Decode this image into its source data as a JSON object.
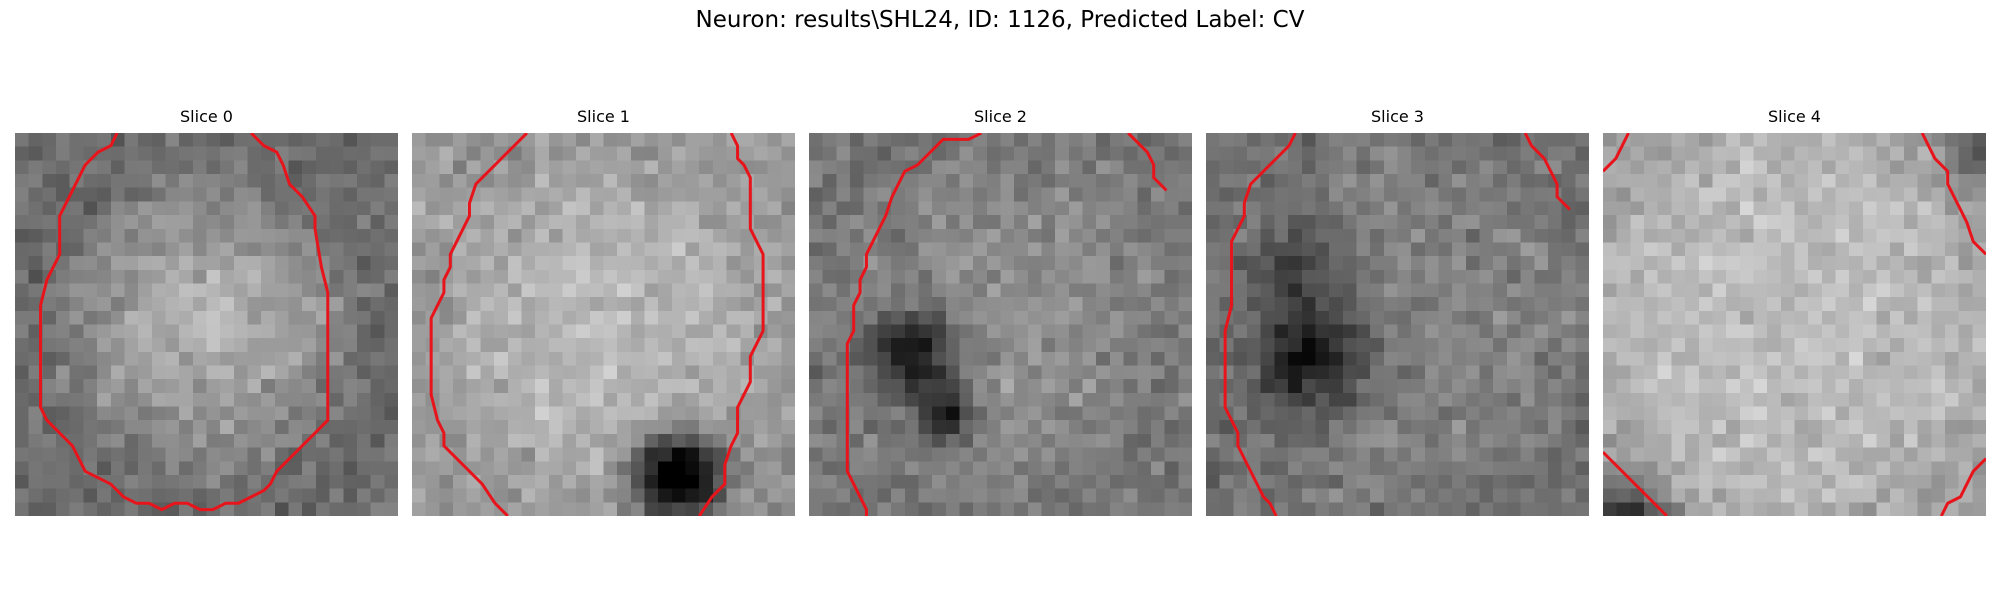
{
  "figure": {
    "title": "Neuron: results\\SHL24, ID: 1126, Predicted Label: CV",
    "colormap": "gray",
    "contour_color": "#e8141b",
    "grid_size": 28
  },
  "slices": [
    {
      "title": "Slice 0",
      "mean": 0.55,
      "center_brightness": 0.2,
      "radius": 0.62,
      "edge_darkness": -0.12,
      "dark_spots": [],
      "contours": [
        [
          [
            7.5,
            -0.5
          ],
          [
            7,
            0.5
          ],
          [
            6,
            1
          ],
          [
            5,
            2
          ],
          [
            4.5,
            3
          ],
          [
            4,
            4
          ],
          [
            3.5,
            5
          ],
          [
            3,
            6
          ],
          [
            3,
            8
          ],
          [
            3,
            9
          ],
          [
            2.5,
            10
          ],
          [
            2,
            11
          ],
          [
            1.5,
            13
          ],
          [
            1.5,
            16
          ],
          [
            1.5,
            19
          ],
          [
            1.5,
            21
          ],
          [
            2,
            22
          ],
          [
            3,
            23
          ],
          [
            4,
            24
          ],
          [
            4.5,
            25
          ],
          [
            5,
            26
          ],
          [
            6,
            26.5
          ],
          [
            7,
            27
          ],
          [
            8,
            28
          ],
          [
            9,
            28.5
          ],
          [
            10,
            28.5
          ],
          [
            11,
            29
          ],
          [
            12,
            28.5
          ],
          [
            13,
            28.5
          ],
          [
            14,
            29
          ],
          [
            15,
            29
          ],
          [
            16,
            28.5
          ],
          [
            17,
            28.5
          ],
          [
            18,
            28
          ],
          [
            19,
            27.5
          ],
          [
            19.5,
            27
          ],
          [
            20,
            26
          ],
          [
            21,
            25
          ],
          [
            22,
            24
          ],
          [
            23,
            23
          ],
          [
            24,
            22
          ],
          [
            24,
            20
          ],
          [
            24,
            17
          ],
          [
            24,
            15
          ],
          [
            24,
            12
          ],
          [
            23.5,
            10
          ],
          [
            23,
            7
          ],
          [
            23,
            6
          ],
          [
            22,
            4.5
          ],
          [
            21,
            3.5
          ],
          [
            20.5,
            2
          ],
          [
            20,
            1
          ],
          [
            19,
            0.5
          ],
          [
            18.5,
            0
          ],
          [
            18,
            -0.5
          ]
        ]
      ]
    },
    {
      "title": "Slice 1",
      "mean": 0.68,
      "center_brightness": 0.08,
      "radius": 0.7,
      "edge_darkness": -0.08,
      "dark_spots": [
        [
          19,
          24.5,
          2.2,
          0.75
        ]
      ],
      "contours": [
        [
          [
            8.5,
            -0.5
          ],
          [
            7.5,
            0.5
          ],
          [
            6,
            2
          ],
          [
            4.5,
            3.5
          ],
          [
            4,
            5
          ],
          [
            4,
            6
          ],
          [
            3.5,
            7
          ],
          [
            3,
            8
          ],
          [
            2.5,
            9
          ],
          [
            2.5,
            10
          ],
          [
            2,
            11
          ],
          [
            2,
            12
          ],
          [
            1.5,
            13
          ],
          [
            1,
            14
          ],
          [
            1,
            16
          ],
          [
            1,
            18
          ],
          [
            1,
            20
          ],
          [
            1.5,
            22
          ],
          [
            2,
            23
          ],
          [
            2,
            24
          ],
          [
            3,
            25
          ],
          [
            4,
            26
          ],
          [
            5,
            27
          ],
          [
            6,
            28.5
          ],
          [
            7,
            29.5
          ]
        ],
        [
          [
            24.5,
            -0.5
          ],
          [
            25,
            0.5
          ],
          [
            25,
            1.5
          ],
          [
            25.5,
            2
          ],
          [
            26,
            3
          ],
          [
            26,
            5
          ],
          [
            26,
            7
          ],
          [
            26.5,
            8
          ],
          [
            27,
            9
          ],
          [
            27,
            11
          ],
          [
            27,
            13
          ],
          [
            27,
            15
          ],
          [
            26.5,
            16
          ],
          [
            26,
            17
          ],
          [
            26,
            19
          ],
          [
            25.5,
            20
          ],
          [
            25,
            21
          ],
          [
            25,
            23
          ],
          [
            24.5,
            24
          ],
          [
            24,
            25.5
          ],
          [
            24,
            27
          ],
          [
            23,
            28
          ],
          [
            22,
            29.5
          ]
        ]
      ]
    },
    {
      "title": "Slice 2",
      "mean": 0.52,
      "center_brightness": 0.06,
      "radius": 0.75,
      "edge_darkness": -0.05,
      "dark_spots": [
        [
          7,
          15.5,
          2.2,
          0.45
        ],
        [
          9.5,
          20,
          1.6,
          0.35
        ]
      ],
      "contours": [
        [
          [
            13,
            -0.5
          ],
          [
            12,
            0
          ],
          [
            10,
            0
          ],
          [
            9,
            1
          ],
          [
            8,
            2
          ],
          [
            7,
            2.5
          ],
          [
            6.5,
            3.5
          ],
          [
            6,
            4.5
          ],
          [
            5.5,
            6
          ],
          [
            5,
            7
          ],
          [
            4.5,
            8
          ],
          [
            4,
            9
          ],
          [
            4,
            10
          ],
          [
            3.5,
            11
          ],
          [
            3.5,
            12
          ],
          [
            3,
            13
          ],
          [
            3,
            14
          ],
          [
            3,
            15
          ],
          [
            2.5,
            16
          ],
          [
            2.5,
            18
          ],
          [
            2.5,
            20
          ],
          [
            2.5,
            22
          ],
          [
            2.5,
            24
          ],
          [
            2.5,
            26
          ],
          [
            3,
            27
          ],
          [
            3.5,
            28
          ],
          [
            4,
            29
          ],
          [
            4,
            29.5
          ]
        ],
        [
          [
            24.5,
            -0.5
          ],
          [
            25,
            0
          ],
          [
            26,
            1
          ],
          [
            26.5,
            2
          ],
          [
            26.5,
            3
          ],
          [
            27,
            3.5
          ],
          [
            27.5,
            4
          ]
        ]
      ]
    },
    {
      "title": "Slice 3",
      "mean": 0.5,
      "center_brightness": 0.02,
      "radius": 0.8,
      "edge_darkness": -0.05,
      "dark_spots": [
        [
          7,
          16,
          3,
          0.4
        ],
        [
          6,
          9,
          2.5,
          0.22
        ]
      ],
      "contours": [
        [
          [
            6.5,
            -0.5
          ],
          [
            6,
            0.5
          ],
          [
            5,
            1.5
          ],
          [
            4,
            2.5
          ],
          [
            3,
            3.5
          ],
          [
            2.5,
            5
          ],
          [
            2.5,
            6
          ],
          [
            2,
            7
          ],
          [
            1.5,
            8
          ],
          [
            1.5,
            10
          ],
          [
            1.5,
            13
          ],
          [
            1,
            15
          ],
          [
            1,
            17
          ],
          [
            1,
            19
          ],
          [
            1,
            21
          ],
          [
            1.5,
            22
          ],
          [
            2,
            23
          ],
          [
            2,
            24
          ],
          [
            2.5,
            25
          ],
          [
            3,
            26
          ],
          [
            3.5,
            27
          ],
          [
            4,
            28
          ],
          [
            4.5,
            28.5
          ],
          [
            5,
            29.5
          ]
        ],
        [
          [
            24.5,
            -0.5
          ],
          [
            25,
            0.5
          ],
          [
            26,
            1.5
          ],
          [
            26.5,
            2.5
          ],
          [
            27,
            3.5
          ],
          [
            27,
            4.5
          ],
          [
            27.5,
            5
          ],
          [
            28,
            5.5
          ]
        ]
      ]
    },
    {
      "title": "Slice 4",
      "mean": 0.72,
      "center_brightness": 0.04,
      "radius": 0.9,
      "edge_darkness": -0.08,
      "dark_spots": [
        [
          1,
          28.5,
          2,
          0.6
        ],
        [
          27,
          1,
          1.5,
          0.35
        ]
      ],
      "contours": [
        [
          [
            1.5,
            -0.5
          ],
          [
            1,
            0.5
          ],
          [
            0.5,
            1.5
          ],
          [
            0,
            2
          ],
          [
            -0.5,
            2.5
          ]
        ],
        [
          [
            24.5,
            -0.5
          ],
          [
            25,
            0.5
          ],
          [
            25.5,
            1.5
          ],
          [
            26,
            2
          ],
          [
            26.5,
            2.5
          ],
          [
            26.5,
            3.5
          ],
          [
            27,
            4.5
          ],
          [
            27.5,
            5.5
          ],
          [
            28,
            6.5
          ],
          [
            28.5,
            8
          ],
          [
            29.5,
            9
          ]
        ],
        [
          [
            -0.5,
            24.5
          ],
          [
            0.5,
            25.5
          ],
          [
            1.5,
            26.5
          ],
          [
            2.5,
            27.5
          ],
          [
            3.5,
            28.5
          ],
          [
            4.5,
            29.5
          ]
        ],
        [
          [
            29.5,
            25
          ],
          [
            28.5,
            26
          ],
          [
            28,
            27
          ],
          [
            27.5,
            28
          ],
          [
            26.5,
            28.5
          ],
          [
            26,
            29.5
          ]
        ]
      ]
    }
  ]
}
